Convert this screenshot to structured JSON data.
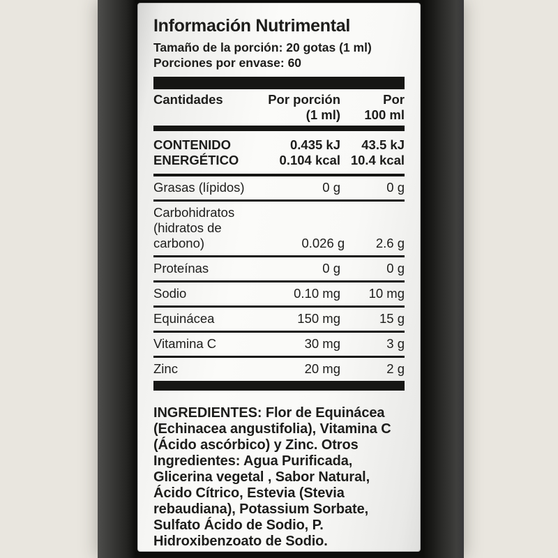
{
  "colors": {
    "backdrop": "#e9e6df",
    "bottle_dark": "#141412",
    "label_background": "#fafaf8",
    "text": "#1d1d1b"
  },
  "label": {
    "title": "Información Nutrimental",
    "serving_size": "Tamaño de la porción: 20 gotas (1 ml)",
    "servings_per_container": "Porciones por envase: 60",
    "table": {
      "headers": {
        "col1": "Cantidades",
        "col2": [
          "Por porción",
          "(1 ml)"
        ],
        "col3": [
          "Por",
          "100 ml"
        ]
      },
      "energy_row": {
        "label": [
          "CONTENIDO",
          "ENERGÉTICO"
        ],
        "per_portion": [
          "0.435 kJ",
          "0.104 kcal"
        ],
        "per_100ml": [
          "43.5 kJ",
          "10.4 kcal"
        ]
      },
      "rows": [
        {
          "label": [
            "Grasas (lípidos)",
            ""
          ],
          "per_portion": "0 g",
          "per_100ml": "0 g"
        },
        {
          "label": [
            "Carbohidratos",
            "(hidratos de carbono)"
          ],
          "per_portion": "0.026 g",
          "per_100ml": "2.6 g"
        },
        {
          "label": [
            "Proteínas",
            ""
          ],
          "per_portion": "0 g",
          "per_100ml": "0 g"
        },
        {
          "label": [
            "Sodio",
            ""
          ],
          "per_portion": "0.10 mg",
          "per_100ml": "10 mg"
        },
        {
          "label": [
            "Equinácea",
            ""
          ],
          "per_portion": "150 mg",
          "per_100ml": "15 g"
        },
        {
          "label": [
            "Vitamina C",
            ""
          ],
          "per_portion": "30 mg",
          "per_100ml": "3 g"
        },
        {
          "label": [
            "Zinc",
            ""
          ],
          "per_portion": "20 mg",
          "per_100ml": "2 g"
        }
      ]
    },
    "ingredients": "INGREDIENTES: Flor de Equinácea (Echinacea angustifolia), Vitamina C (Ácido ascórbico) y Zinc. Otros Ingredientes: Agua Purificada, Glicerina vegetal , Sabor Natural, Ácido Cítrico, Estevia (Stevia rebaudiana), Potassium Sorbate, Sulfato Ácido de Sodio, P. Hidroxibenzoato de Sodio."
  }
}
